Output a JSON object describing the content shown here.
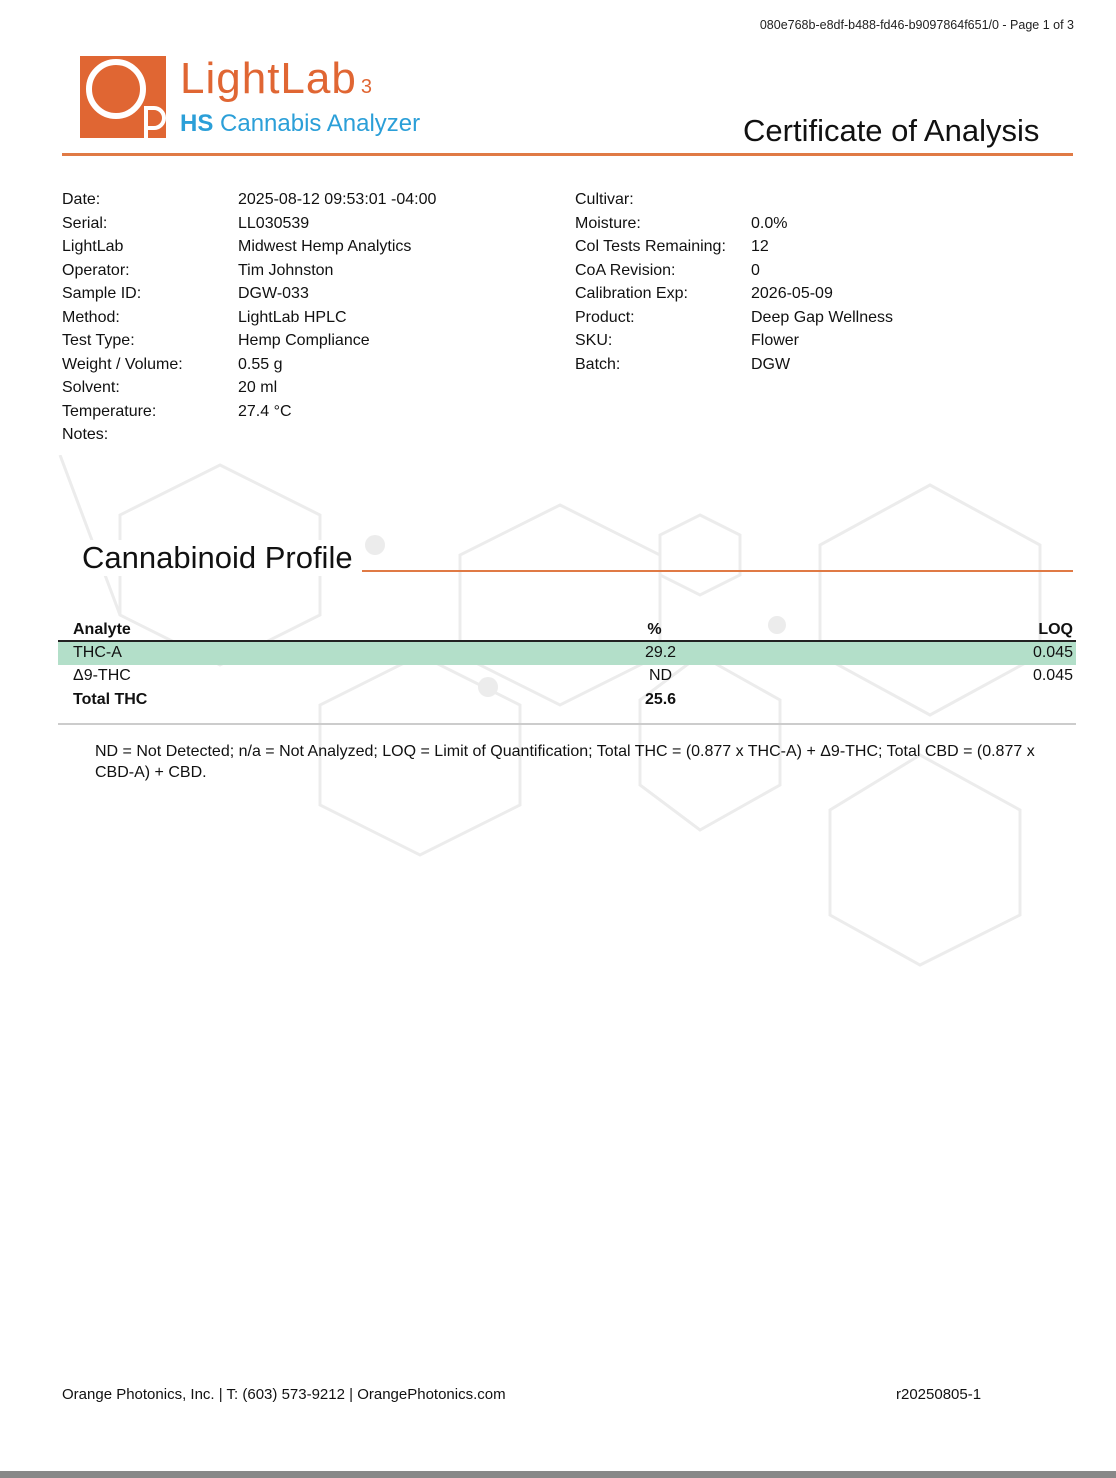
{
  "doc_id": "080e768b-e8df-b488-fd46-b9097864f651/0 - Page 1 of 3",
  "logo": {
    "mark": "OP",
    "title": "LightLab",
    "title_sup": "3",
    "sub_bold": "HS",
    "sub": "Cannabis Analyzer"
  },
  "title": "Certificate of Analysis",
  "meta_left": [
    {
      "label": "Date:",
      "value": "2025-08-12 09:53:01 -04:00"
    },
    {
      "label": "Serial:",
      "value": "LL030539"
    },
    {
      "label": "LightLab",
      "value": "Midwest Hemp Analytics"
    },
    {
      "label": "Operator:",
      "value": "Tim Johnston"
    },
    {
      "label": "Sample ID:",
      "value": "DGW-033"
    },
    {
      "label": "Method:",
      "value": "LightLab HPLC"
    },
    {
      "label": "Test Type:",
      "value": "Hemp Compliance"
    },
    {
      "label": "Weight / Volume:",
      "value": "0.55 g"
    },
    {
      "label": "Solvent:",
      "value": "20 ml"
    },
    {
      "label": "Temperature:",
      "value": "27.4 °C"
    },
    {
      "label": "Notes:",
      "value": ""
    }
  ],
  "meta_right": [
    {
      "label": "Cultivar:",
      "value": ""
    },
    {
      "label": "Moisture:",
      "value": "0.0%"
    },
    {
      "label": "Col Tests Remaining:",
      "value": "12"
    },
    {
      "label": "CoA Revision:",
      "value": "0"
    },
    {
      "label": "Calibration Exp:",
      "value": "2026-05-09"
    },
    {
      "label": "Product:",
      "value": "Deep Gap Wellness"
    },
    {
      "label": "SKU:",
      "value": "Flower"
    },
    {
      "label": "Batch:",
      "value": "DGW"
    }
  ],
  "profile": {
    "title": "Cannabinoid Profile",
    "headers": [
      "Analyte",
      "%",
      "LOQ"
    ],
    "rows": [
      {
        "analyte": "THC-A",
        "pct": "29.2",
        "loq": "0.045",
        "highlight": true
      },
      {
        "analyte": "Δ9-THC",
        "pct": "ND",
        "loq": "0.045"
      },
      {
        "analyte": "Total THC",
        "pct": "25.6",
        "loq": "",
        "bold": true
      }
    ],
    "footnote": "ND = Not Detected; n/a = Not Analyzed;  LOQ = Limit of Quantification; Total THC = (0.877 x THC-A) + Δ9-THC; Total CBD = (0.877 x CBD-A) + CBD."
  },
  "footer": {
    "left": "Orange Photonics, Inc. | T: (603) 573-9212  |  OrangePhotonics.com",
    "right": "r20250805-1"
  },
  "colors": {
    "brand_orange": "#e06633",
    "brand_blue": "#2b9fd8",
    "highlight": "#b3dfc9"
  }
}
